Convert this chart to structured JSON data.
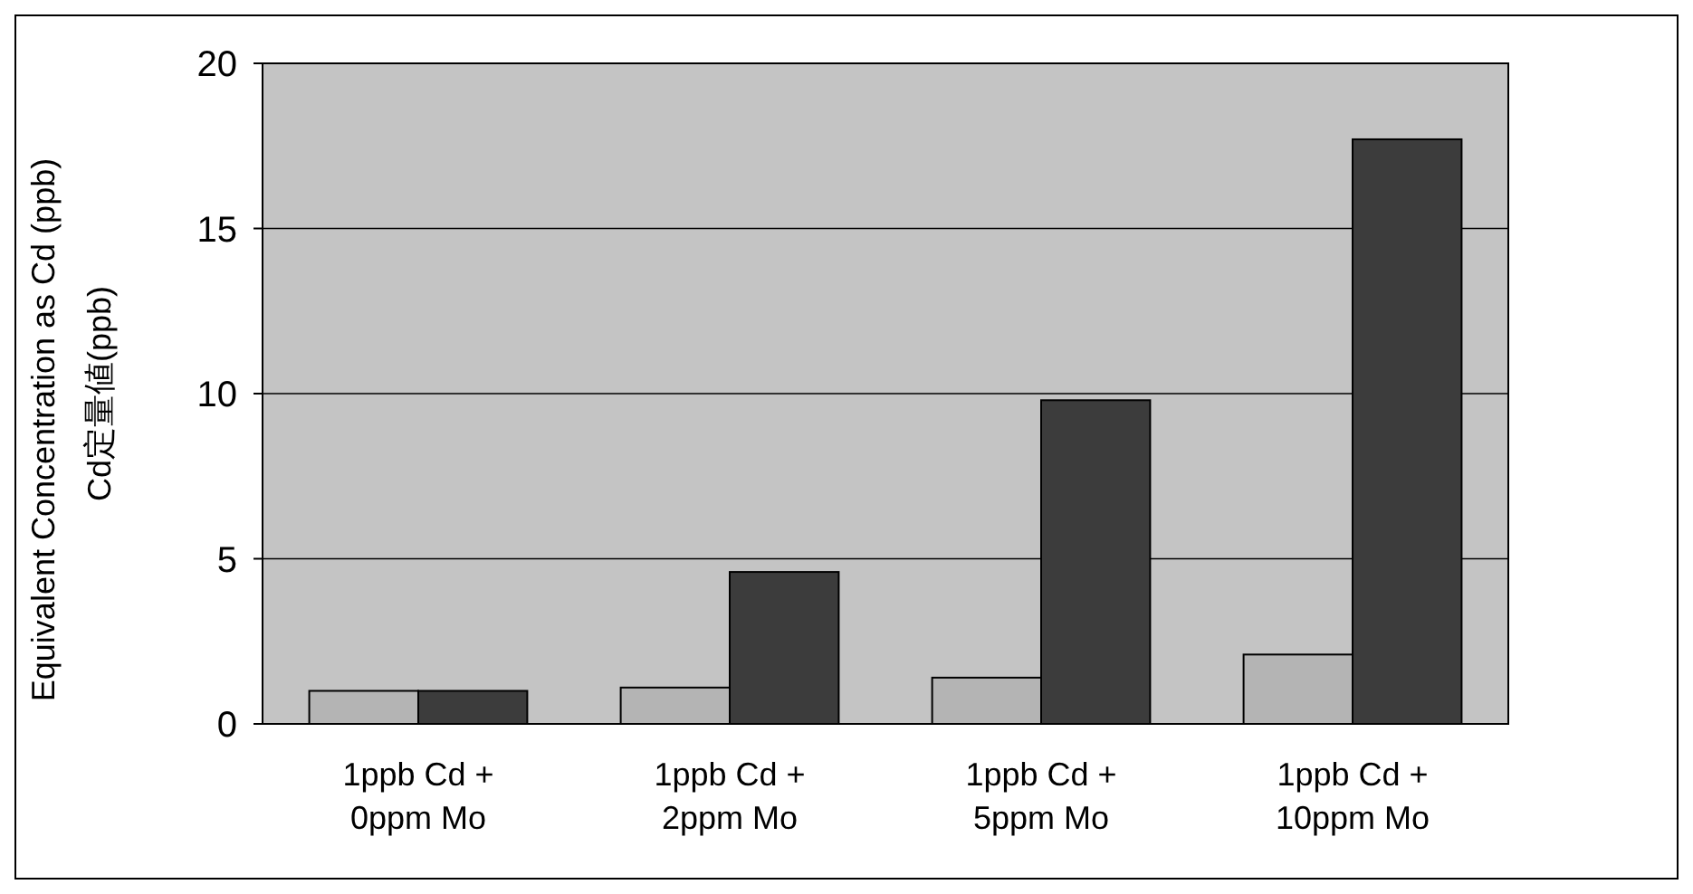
{
  "chart_data": {
    "type": "bar",
    "ylabel": "Cd定量値(ppb)",
    "annotations": [
      "Equivalent Concentration as Cd (ppb)"
    ],
    "categories": [
      "1ppb Cd +\n0ppm Mo",
      "1ppb Cd +\n2ppm Mo",
      "1ppb Cd +\n5ppm Mo",
      "1ppb Cd +\n10ppm Mo"
    ],
    "series": [
      {
        "color": "#b4b4b4",
        "values": [
          1.0,
          1.1,
          1.4,
          2.1
        ]
      },
      {
        "color": "#3c3c3c",
        "values": [
          1.0,
          4.6,
          9.8,
          17.7
        ]
      }
    ],
    "ylim": [
      0,
      20
    ],
    "yticks": [
      0,
      5,
      10,
      15,
      20
    ],
    "grid": "y"
  }
}
